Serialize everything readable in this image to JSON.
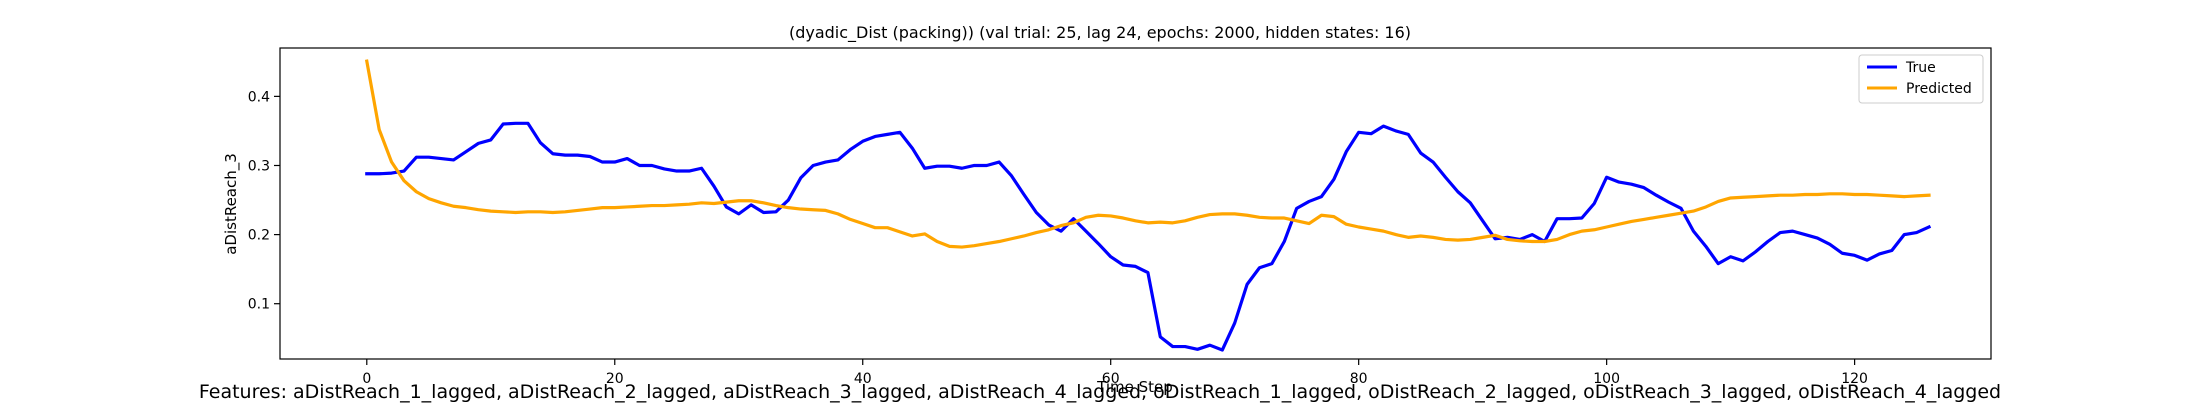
{
  "chart_data": {
    "type": "line",
    "title": "(dyadic_Dist (packing)) (val trial: 25, lag 24, epochs: 2000, hidden states: 16)",
    "xlabel": "Time Step",
    "ylabel": "aDistReach_3",
    "xlim": [
      -7,
      131
    ],
    "ylim": [
      0.02,
      0.47
    ],
    "xticks": [
      0,
      20,
      40,
      60,
      80,
      100,
      120
    ],
    "yticks": [
      0.1,
      0.2,
      0.3,
      0.4
    ],
    "xtick_labels": [
      "0",
      "20",
      "40",
      "60",
      "80",
      "100",
      "120"
    ],
    "ytick_labels": [
      "0.1",
      "0.2",
      "0.3",
      "0.4"
    ],
    "grid": false,
    "legend": "top-right",
    "series": [
      {
        "name": "True",
        "color": "#0000ff",
        "values": [
          0.288,
          0.288,
          0.289,
          0.292,
          0.312,
          0.312,
          0.31,
          0.308,
          0.32,
          0.332,
          0.337,
          0.36,
          0.361,
          0.361,
          0.333,
          0.317,
          0.315,
          0.315,
          0.313,
          0.305,
          0.305,
          0.31,
          0.3,
          0.3,
          0.295,
          0.292,
          0.292,
          0.296,
          0.27,
          0.24,
          0.23,
          0.243,
          0.232,
          0.233,
          0.25,
          0.282,
          0.3,
          0.305,
          0.308,
          0.323,
          0.335,
          0.342,
          0.345,
          0.348,
          0.325,
          0.296,
          0.299,
          0.299,
          0.296,
          0.3,
          0.3,
          0.305,
          0.285,
          0.258,
          0.232,
          0.214,
          0.205,
          0.223,
          0.205,
          0.187,
          0.168,
          0.156,
          0.154,
          0.145,
          0.052,
          0.038,
          0.038,
          0.034,
          0.04,
          0.033,
          0.072,
          0.128,
          0.152,
          0.158,
          0.19,
          0.238,
          0.248,
          0.255,
          0.28,
          0.32,
          0.348,
          0.346,
          0.357,
          0.35,
          0.345,
          0.318,
          0.305,
          0.283,
          0.262,
          0.246,
          0.22,
          0.194,
          0.196,
          0.193,
          0.2,
          0.19,
          0.223,
          0.223,
          0.224,
          0.245,
          0.283,
          0.276,
          0.273,
          0.268,
          0.257,
          0.247,
          0.238,
          0.205,
          0.183,
          0.158,
          0.168,
          0.162,
          0.175,
          0.19,
          0.203,
          0.205,
          0.2,
          0.195,
          0.186,
          0.173,
          0.17,
          0.163,
          0.172,
          0.177,
          0.2,
          0.203,
          0.211
        ]
      },
      {
        "name": "Predicted",
        "color": "#ffa500",
        "values": [
          0.451,
          0.352,
          0.305,
          0.278,
          0.262,
          0.252,
          0.246,
          0.241,
          0.239,
          0.236,
          0.234,
          0.233,
          0.232,
          0.233,
          0.233,
          0.232,
          0.233,
          0.235,
          0.237,
          0.239,
          0.239,
          0.24,
          0.241,
          0.242,
          0.242,
          0.243,
          0.244,
          0.246,
          0.245,
          0.247,
          0.249,
          0.249,
          0.246,
          0.242,
          0.239,
          0.237,
          0.236,
          0.235,
          0.23,
          0.222,
          0.216,
          0.21,
          0.21,
          0.204,
          0.198,
          0.201,
          0.19,
          0.183,
          0.182,
          0.184,
          0.187,
          0.19,
          0.194,
          0.198,
          0.203,
          0.207,
          0.213,
          0.217,
          0.225,
          0.228,
          0.227,
          0.224,
          0.22,
          0.217,
          0.218,
          0.217,
          0.22,
          0.225,
          0.229,
          0.23,
          0.23,
          0.228,
          0.225,
          0.224,
          0.224,
          0.22,
          0.216,
          0.228,
          0.226,
          0.215,
          0.211,
          0.208,
          0.205,
          0.2,
          0.196,
          0.198,
          0.196,
          0.193,
          0.192,
          0.193,
          0.196,
          0.199,
          0.193,
          0.191,
          0.19,
          0.19,
          0.193,
          0.2,
          0.205,
          0.207,
          0.211,
          0.215,
          0.219,
          0.222,
          0.225,
          0.228,
          0.231,
          0.234,
          0.24,
          0.248,
          0.253,
          0.254,
          0.255,
          0.256,
          0.257,
          0.257,
          0.258,
          0.258,
          0.259,
          0.259,
          0.258,
          0.258,
          0.257,
          0.256,
          0.255,
          0.256,
          0.257
        ]
      }
    ]
  },
  "caption": "Features: aDistReach_1_lagged, aDistReach_2_lagged, aDistReach_3_lagged, aDistReach_4_lagged, oDistReach_1_lagged, oDistReach_2_lagged, oDistReach_3_lagged, oDistReach_4_lagged"
}
